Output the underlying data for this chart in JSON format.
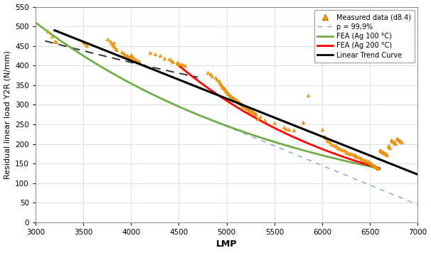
{
  "xlabel": "LMP",
  "ylabel": "Residual linear load Y2R (N/mm)",
  "xlim": [
    3000,
    7000
  ],
  "ylim": [
    0,
    550
  ],
  "xticks": [
    3000,
    3500,
    4000,
    4500,
    5000,
    5500,
    6000,
    6500,
    7000
  ],
  "yticks": [
    0,
    50,
    100,
    150,
    200,
    250,
    300,
    350,
    400,
    450,
    500,
    550
  ],
  "scatter_color": "#FFA500",
  "scatter_data": [
    [
      3130,
      487
    ],
    [
      3170,
      475
    ],
    [
      3200,
      463
    ],
    [
      3220,
      461
    ],
    [
      3500,
      460
    ],
    [
      3520,
      456
    ],
    [
      3540,
      452
    ],
    [
      3750,
      468
    ],
    [
      3780,
      463
    ],
    [
      3800,
      456
    ],
    [
      3810,
      452
    ],
    [
      3820,
      458
    ],
    [
      3830,
      448
    ],
    [
      3840,
      442
    ],
    [
      3850,
      440
    ],
    [
      3900,
      435
    ],
    [
      3920,
      432
    ],
    [
      3940,
      428
    ],
    [
      3960,
      425
    ],
    [
      3970,
      422
    ],
    [
      3980,
      420
    ],
    [
      3990,
      418
    ],
    [
      4000,
      427
    ],
    [
      4010,
      424
    ],
    [
      4020,
      420
    ],
    [
      4040,
      416
    ],
    [
      4060,
      413
    ],
    [
      4080,
      412
    ],
    [
      4090,
      410
    ],
    [
      4200,
      433
    ],
    [
      4250,
      430
    ],
    [
      4300,
      425
    ],
    [
      4350,
      418
    ],
    [
      4400,
      416
    ],
    [
      4420,
      413
    ],
    [
      4440,
      410
    ],
    [
      4480,
      408
    ],
    [
      4490,
      406
    ],
    [
      4500,
      405
    ],
    [
      4520,
      404
    ],
    [
      4540,
      402
    ],
    [
      4560,
      400
    ],
    [
      4800,
      382
    ],
    [
      4830,
      378
    ],
    [
      4850,
      374
    ],
    [
      4880,
      370
    ],
    [
      4900,
      365
    ],
    [
      4920,
      360
    ],
    [
      4930,
      356
    ],
    [
      4940,
      352
    ],
    [
      4950,
      348
    ],
    [
      4960,
      345
    ],
    [
      4970,
      342
    ],
    [
      4980,
      340
    ],
    [
      4990,
      336
    ],
    [
      5000,
      333
    ],
    [
      5010,
      330
    ],
    [
      5020,
      328
    ],
    [
      5030,
      325
    ],
    [
      5040,
      323
    ],
    [
      5050,
      321
    ],
    [
      5060,
      319
    ],
    [
      5070,
      317
    ],
    [
      5080,
      315
    ],
    [
      5090,
      313
    ],
    [
      5100,
      311
    ],
    [
      5110,
      310
    ],
    [
      5120,
      308
    ],
    [
      5130,
      306
    ],
    [
      5140,
      304
    ],
    [
      5150,
      302
    ],
    [
      5160,
      300
    ],
    [
      5170,
      298
    ],
    [
      5180,
      296
    ],
    [
      5190,
      295
    ],
    [
      5200,
      293
    ],
    [
      5210,
      291
    ],
    [
      5220,
      289
    ],
    [
      5230,
      287
    ],
    [
      5240,
      286
    ],
    [
      5250,
      284
    ],
    [
      5260,
      283
    ],
    [
      5270,
      282
    ],
    [
      5280,
      280
    ],
    [
      5290,
      278
    ],
    [
      5300,
      277
    ],
    [
      5310,
      275
    ],
    [
      5320,
      265
    ],
    [
      5350,
      270
    ],
    [
      5400,
      260
    ],
    [
      5500,
      254
    ],
    [
      5600,
      242
    ],
    [
      5620,
      240
    ],
    [
      5650,
      237
    ],
    [
      5700,
      235
    ],
    [
      5800,
      255
    ],
    [
      5850,
      325
    ],
    [
      6000,
      238
    ],
    [
      6020,
      220
    ],
    [
      6040,
      215
    ],
    [
      6050,
      210
    ],
    [
      6060,
      208
    ],
    [
      6080,
      205
    ],
    [
      6100,
      200
    ],
    [
      6120,
      198
    ],
    [
      6140,
      195
    ],
    [
      6150,
      193
    ],
    [
      6160,
      190
    ],
    [
      6180,
      188
    ],
    [
      6200,
      186
    ],
    [
      6220,
      184
    ],
    [
      6240,
      182
    ],
    [
      6250,
      180
    ],
    [
      6260,
      178
    ],
    [
      6280,
      176
    ],
    [
      6300,
      175
    ],
    [
      6320,
      173
    ],
    [
      6340,
      172
    ],
    [
      6350,
      170
    ],
    [
      6360,
      168
    ],
    [
      6380,
      167
    ],
    [
      6400,
      165
    ],
    [
      6410,
      163
    ],
    [
      6420,
      162
    ],
    [
      6440,
      160
    ],
    [
      6450,
      158
    ],
    [
      6460,
      157
    ],
    [
      6480,
      155
    ],
    [
      6490,
      153
    ],
    [
      6500,
      152
    ],
    [
      6510,
      150
    ],
    [
      6520,
      148
    ],
    [
      6530,
      147
    ],
    [
      6540,
      145
    ],
    [
      6550,
      143
    ],
    [
      6560,
      142
    ],
    [
      6570,
      140
    ],
    [
      6580,
      138
    ],
    [
      6590,
      137
    ],
    [
      6600,
      185
    ],
    [
      6610,
      183
    ],
    [
      6620,
      181
    ],
    [
      6630,
      180
    ],
    [
      6640,
      178
    ],
    [
      6650,
      177
    ],
    [
      6660,
      175
    ],
    [
      6670,
      173
    ],
    [
      6680,
      172
    ],
    [
      6690,
      195
    ],
    [
      6700,
      193
    ],
    [
      6710,
      191
    ],
    [
      6720,
      210
    ],
    [
      6730,
      208
    ],
    [
      6740,
      206
    ],
    [
      6750,
      205
    ],
    [
      6760,
      203
    ],
    [
      6770,
      201
    ],
    [
      6780,
      213
    ],
    [
      6790,
      212
    ],
    [
      6800,
      210
    ],
    [
      6810,
      208
    ],
    [
      6820,
      207
    ],
    [
      6830,
      205
    ]
  ],
  "fea_100_color": "#70AD47",
  "fea_200_color": "#FF0000",
  "linear_trend_color": "#000000",
  "p999_color": "#7BA7D4",
  "dashed_black_color": "#555555",
  "background_color": "#FFFFFF",
  "grid_color": "#D3D3D3",
  "green_x0": 3000,
  "green_y0": 510,
  "green_x1": 6550,
  "green_y1": 140,
  "red_x0": 4500,
  "red_y0": 400,
  "red_x1": 6600,
  "red_y1": 138,
  "lt_x0": 3200,
  "lt_y0": 490,
  "lt_x1": 7000,
  "lt_y1": 122,
  "p999_x0": 4500,
  "p999_y0": 295,
  "p999_x1": 7000,
  "p999_y1": 45,
  "dash_x0": 3100,
  "dash_y0": 463,
  "dash_x1": 4700,
  "dash_y1": 370
}
